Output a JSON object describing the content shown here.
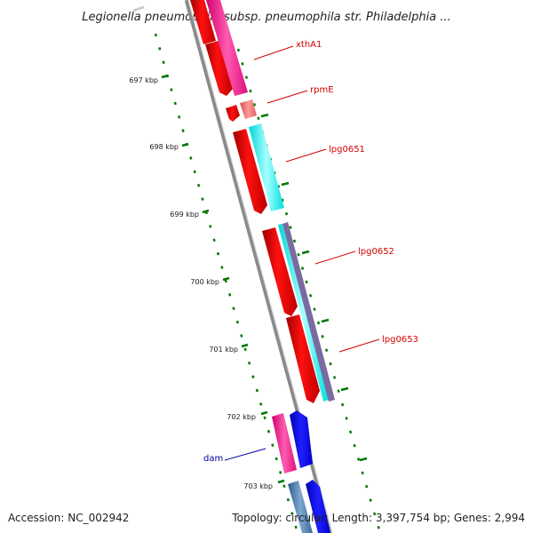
{
  "title": "Legionella pneumophila subsp. pneumophila str. Philadelphia ...",
  "footer": {
    "accession": "Accession: NC_002942",
    "summary": "Topology: circular; Length: 3,397,754 bp; Genes: 2,994"
  },
  "ticks": [
    "697 kbp",
    "698 kbp",
    "699 kbp",
    "700 kbp",
    "701 kbp",
    "702 kbp",
    "703 kbp"
  ],
  "genes": [
    {
      "name": "xthA1",
      "color": "#d40000"
    },
    {
      "name": "rpmE",
      "color": "#d40000"
    },
    {
      "name": "lpg0651",
      "color": "#d40000"
    },
    {
      "name": "lpg0652",
      "color": "#d40000"
    },
    {
      "name": "lpg0653",
      "color": "#d40000"
    },
    {
      "name": "dam",
      "color": "#0000a0"
    }
  ],
  "colors": {
    "backbone": "#8a8a8a",
    "cds_red": "#ff0000",
    "rna_pink": "#ff1493",
    "cyan": "#00ffff",
    "blue": "#0000ff",
    "ticks": "#007700"
  }
}
